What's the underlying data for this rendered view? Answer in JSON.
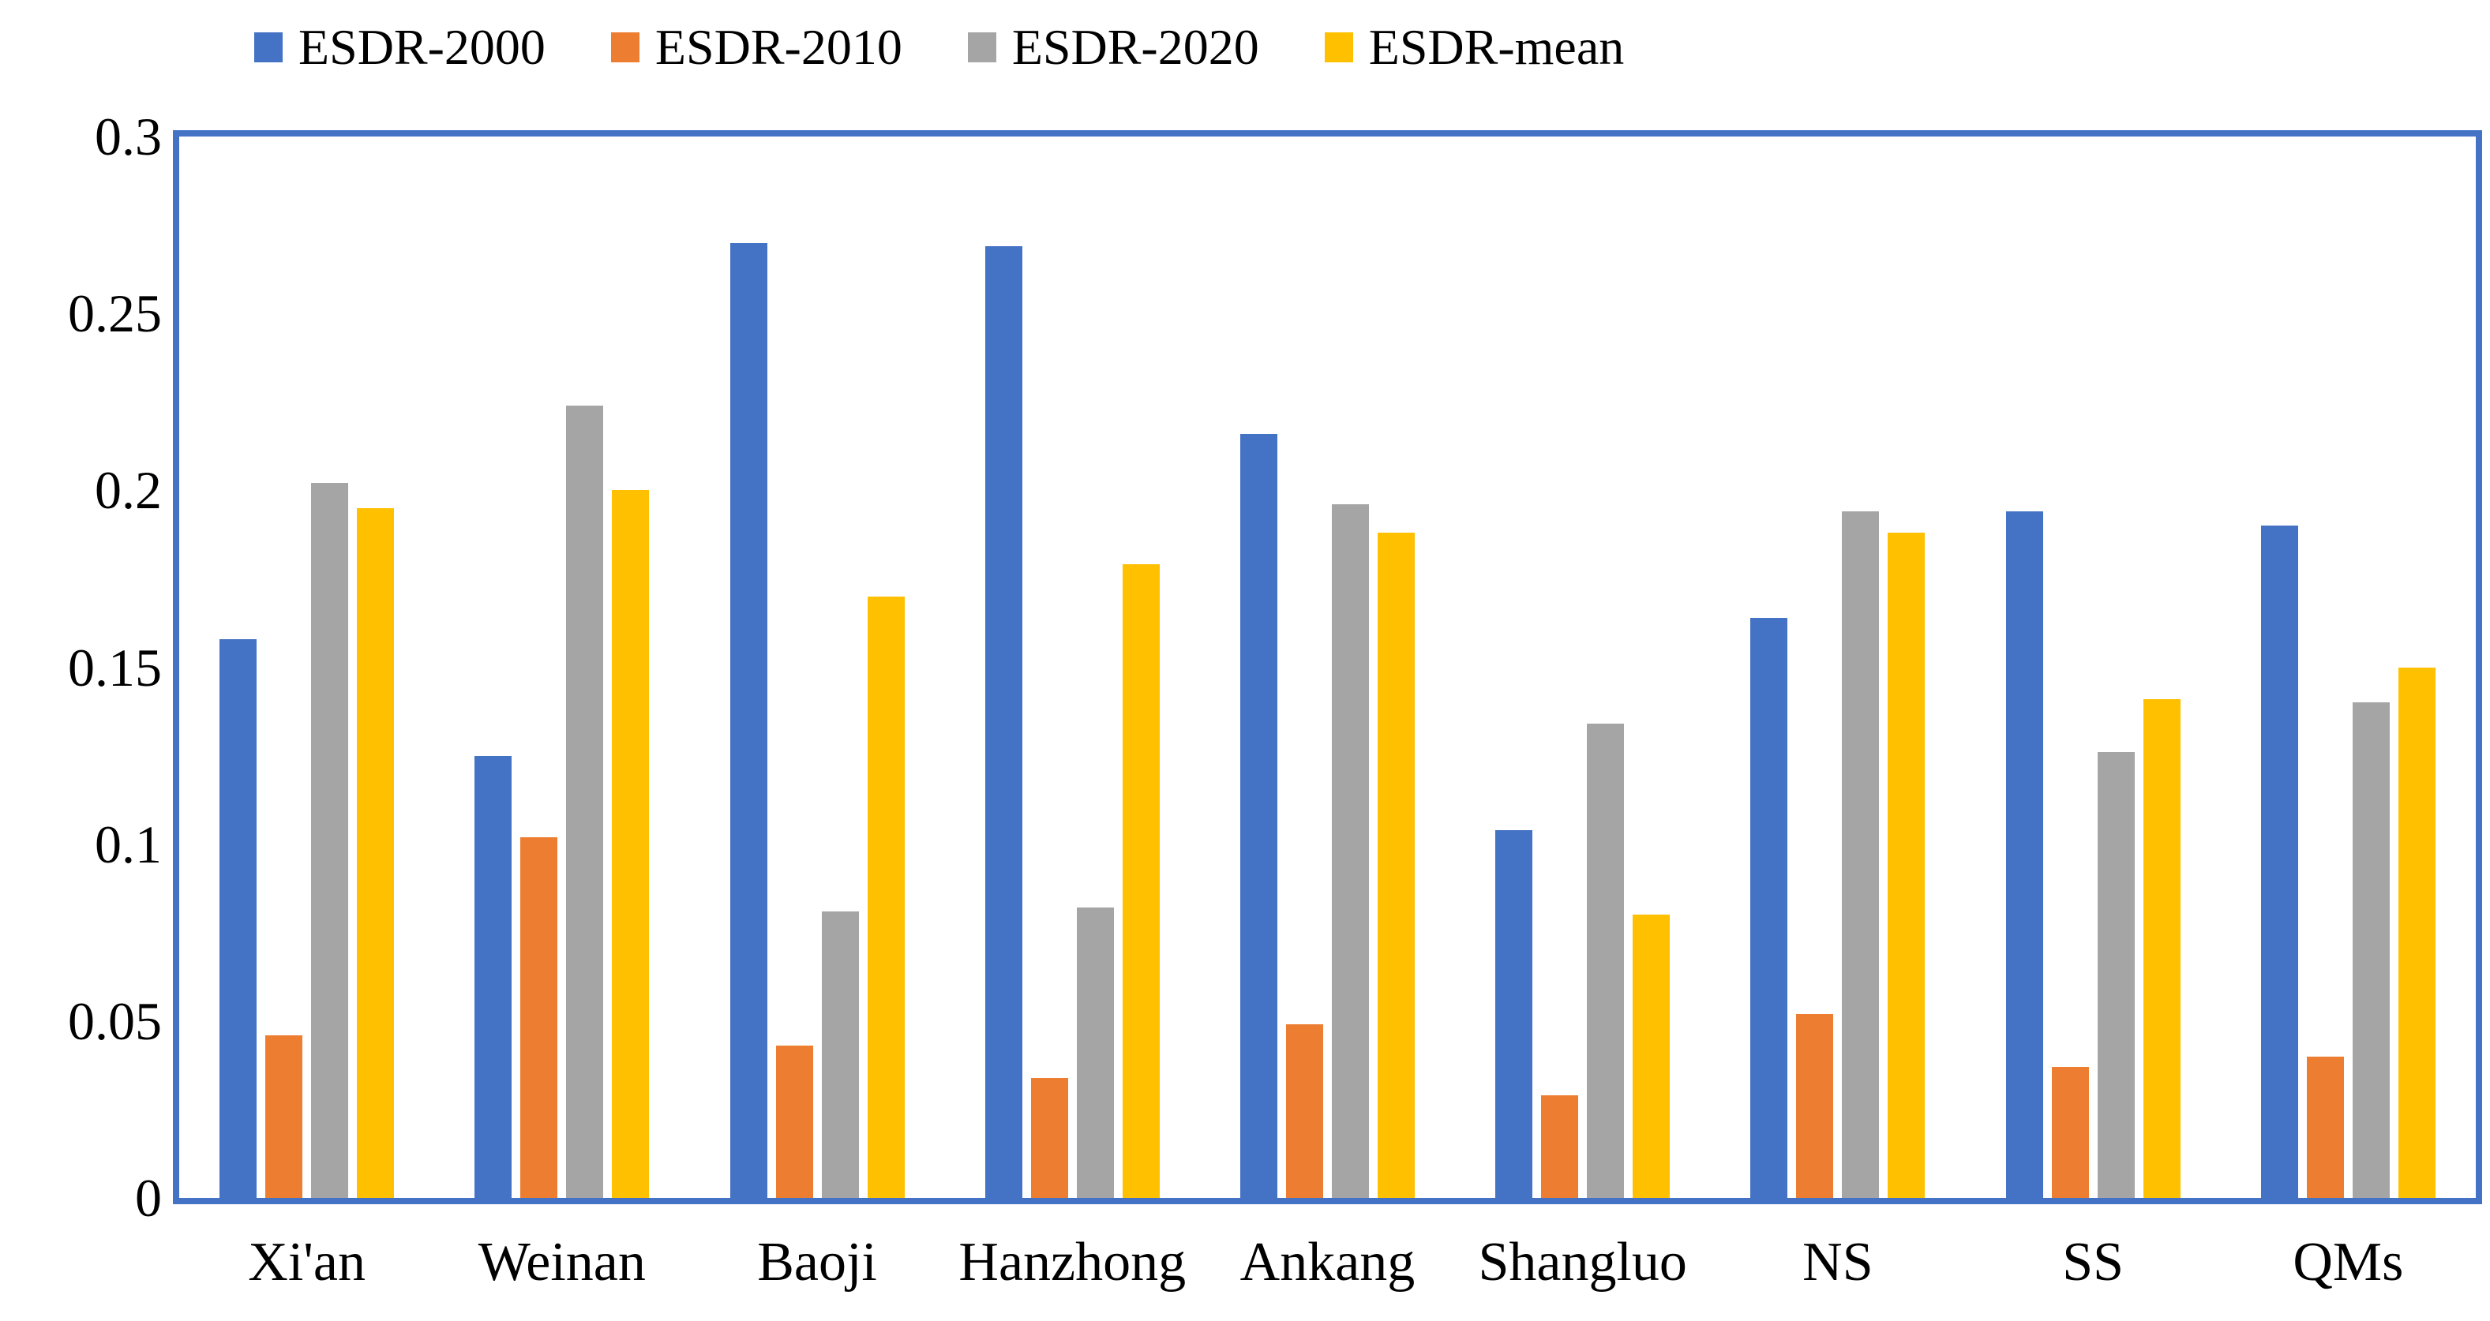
{
  "legend": [
    {
      "label": "ESDR-2000",
      "color": "#4472C4"
    },
    {
      "label": "ESDR-2010",
      "color": "#ED7D31"
    },
    {
      "label": "ESDR-2020",
      "color": "#A5A5A5"
    },
    {
      "label": "ESDR-mean",
      "color": "#FFC000"
    }
  ],
  "chart_data": {
    "type": "bar",
    "categories": [
      "Xi'an",
      "Weinan",
      "Baoji",
      "Hanzhong",
      "Ankang",
      "Shangluo",
      "NS",
      "SS",
      "QMs"
    ],
    "series": [
      {
        "name": "ESDR-2000",
        "color": "#4472C4",
        "values": [
          0.158,
          0.125,
          0.27,
          0.269,
          0.216,
          0.104,
          0.164,
          0.194,
          0.19
        ]
      },
      {
        "name": "ESDR-2010",
        "color": "#ED7D31",
        "values": [
          0.046,
          0.102,
          0.043,
          0.034,
          0.049,
          0.029,
          0.052,
          0.037,
          0.04
        ]
      },
      {
        "name": "ESDR-2020",
        "color": "#A5A5A5",
        "values": [
          0.202,
          0.224,
          0.081,
          0.082,
          0.196,
          0.134,
          0.194,
          0.126,
          0.14
        ]
      },
      {
        "name": "ESDR-mean",
        "color": "#FFC000",
        "values": [
          0.195,
          0.2,
          0.17,
          0.179,
          0.188,
          0.08,
          0.188,
          0.141,
          0.15
        ]
      }
    ],
    "title": "",
    "xlabel": "",
    "ylabel": "",
    "ylim": [
      0,
      0.3
    ],
    "yticks_display": [
      "0.3",
      "0.25",
      "0.2",
      "0.15",
      "0.1",
      "0.05",
      "0"
    ],
    "grid": false,
    "legend_position": "top",
    "plot_border_color": "#4472C4"
  }
}
